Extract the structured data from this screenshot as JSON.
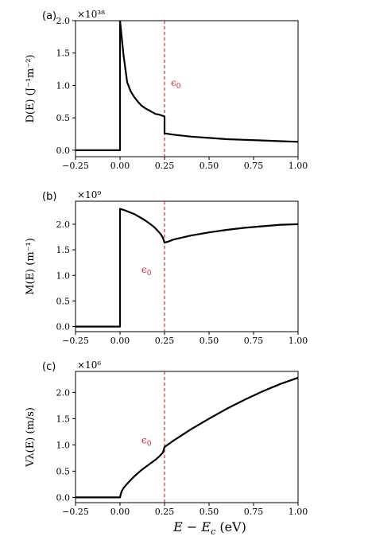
{
  "figure": {
    "xlabel": "E − E",
    "xlabel_sub": "c",
    "xlabel_unit": " (eV)",
    "threshold": {
      "label": "ϵ",
      "label_sub": "0",
      "x": 0.25,
      "color": "#d62728"
    },
    "line_color": "#000000"
  },
  "chart_data": [
    {
      "type": "line",
      "panel_label": "(a)",
      "ylabel": "D(E) (J⁻¹m⁻²)",
      "multiplier": "×10³⁸",
      "xlim": [
        -0.25,
        1.0
      ],
      "ylim": [
        -0.1,
        2.0
      ],
      "xticks": [
        "−0.25",
        "0.00",
        "0.25",
        "0.50",
        "0.75",
        "1.00"
      ],
      "xtick_values": [
        -0.25,
        0.0,
        0.25,
        0.5,
        0.75,
        1.0
      ],
      "yticks": [
        "0.0",
        "0.5",
        "1.0",
        "1.5",
        "2.0"
      ],
      "ytick_values": [
        0.0,
        0.5,
        1.0,
        1.5,
        2.0
      ],
      "series": [
        {
          "x": [
            -0.25,
            0.0,
            0.0,
            0.0,
            0.02,
            0.04,
            0.06,
            0.08,
            0.1,
            0.12,
            0.14,
            0.16,
            0.18,
            0.2,
            0.22,
            0.24,
            0.25,
            0.25,
            0.3,
            0.4,
            0.5,
            0.6,
            0.7,
            0.8,
            0.9,
            1.0
          ],
          "y": [
            0.0,
            0.0,
            2.0,
            2.0,
            1.46,
            1.05,
            0.91,
            0.82,
            0.75,
            0.69,
            0.65,
            0.62,
            0.59,
            0.56,
            0.55,
            0.53,
            0.52,
            0.26,
            0.24,
            0.21,
            0.19,
            0.17,
            0.16,
            0.15,
            0.14,
            0.13
          ]
        }
      ],
      "annotation_pos": "upper"
    },
    {
      "type": "line",
      "panel_label": "(b)",
      "ylabel": "M(E) (m⁻¹)",
      "multiplier": "×10⁹",
      "xlim": [
        -0.25,
        1.0
      ],
      "ylim": [
        -0.1,
        2.45
      ],
      "xticks": [
        "−0.25",
        "0.00",
        "0.25",
        "0.50",
        "0.75",
        "1.00"
      ],
      "xtick_values": [
        -0.25,
        0.0,
        0.25,
        0.5,
        0.75,
        1.0
      ],
      "yticks": [
        "0.0",
        "0.5",
        "1.0",
        "1.5",
        "2.0"
      ],
      "ytick_values": [
        0.0,
        0.5,
        1.0,
        1.5,
        2.0
      ],
      "series": [
        {
          "x": [
            -0.25,
            0.0,
            0.0,
            0.02,
            0.05,
            0.08,
            0.1,
            0.13,
            0.16,
            0.19,
            0.21,
            0.23,
            0.24,
            0.25,
            0.27,
            0.3,
            0.4,
            0.5,
            0.6,
            0.7,
            0.8,
            0.9,
            1.0
          ],
          "y": [
            0.0,
            0.0,
            2.3,
            2.28,
            2.24,
            2.2,
            2.16,
            2.1,
            2.03,
            1.95,
            1.88,
            1.8,
            1.74,
            1.64,
            1.66,
            1.7,
            1.78,
            1.84,
            1.89,
            1.93,
            1.96,
            1.99,
            2.0
          ]
        }
      ],
      "annotation_pos": "middle"
    },
    {
      "type": "line",
      "panel_label": "(c)",
      "ylabel": "Vλ(E) (m/s)",
      "multiplier": "×10⁶",
      "xlim": [
        -0.25,
        1.0
      ],
      "ylim": [
        -0.1,
        2.4
      ],
      "xticks": [
        "−0.25",
        "0.00",
        "0.25",
        "0.50",
        "0.75",
        "1.00"
      ],
      "xtick_values": [
        -0.25,
        0.0,
        0.25,
        0.5,
        0.75,
        1.0
      ],
      "yticks": [
        "0.0",
        "0.5",
        "1.0",
        "1.5",
        "2.0"
      ],
      "ytick_values": [
        0.0,
        0.5,
        1.0,
        1.5,
        2.0
      ],
      "series": [
        {
          "x": [
            -0.25,
            0.0,
            0.005,
            0.01,
            0.02,
            0.04,
            0.06,
            0.08,
            0.1,
            0.12,
            0.14,
            0.16,
            0.18,
            0.2,
            0.22,
            0.24,
            0.25,
            0.3,
            0.4,
            0.5,
            0.6,
            0.7,
            0.8,
            0.9,
            1.0
          ],
          "y": [
            0.0,
            0.0,
            0.07,
            0.12,
            0.18,
            0.26,
            0.33,
            0.4,
            0.46,
            0.52,
            0.57,
            0.62,
            0.67,
            0.72,
            0.78,
            0.85,
            0.96,
            1.08,
            1.3,
            1.5,
            1.69,
            1.86,
            2.02,
            2.16,
            2.28
          ]
        }
      ],
      "annotation_pos": "middle"
    }
  ]
}
